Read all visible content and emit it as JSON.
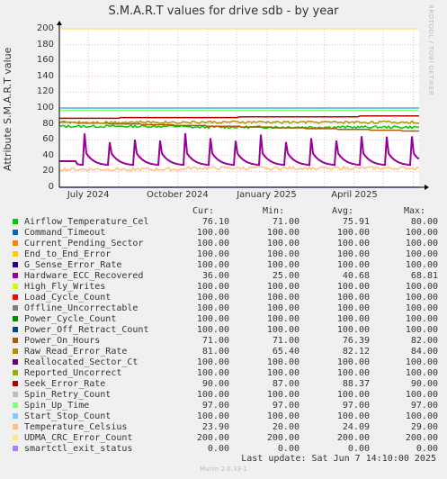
{
  "title": "S.M.A.R.T values for drive sdb - by year",
  "rrdtool_label": "RRDTOOL / TOBI OETIKER",
  "ylabel": "Attribute S.M.A.R.T value",
  "headers": {
    "cur": "Cur:",
    "min": "Min:",
    "avg": "Avg:",
    "max": "Max:"
  },
  "last_update": "Last update:  Sat Jun  7 14:10:00 2025",
  "munin_version": "Munin 2.0.33-1",
  "chart_data": {
    "type": "line",
    "title": "S.M.A.R.T values for drive sdb - by year",
    "ylabel": "Attribute S.M.A.R.T value",
    "ylim": [
      0,
      200
    ],
    "yticks": [
      0,
      20,
      40,
      60,
      80,
      100,
      120,
      140,
      160,
      180,
      200
    ],
    "x_range": [
      "2024-06-01",
      "2025-06-07"
    ],
    "xticks": [
      {
        "label": "July 2024",
        "date": "2024-07-01"
      },
      {
        "label": "October 2024",
        "date": "2024-10-01"
      },
      {
        "label": "January 2025",
        "date": "2025-01-01"
      },
      {
        "label": "April 2025",
        "date": "2025-04-01"
      }
    ],
    "grid": true,
    "series": [
      {
        "name": "Airflow_Temperature_Cel",
        "color": "#00CC00",
        "cur": "76.10",
        "min": "71.00",
        "avg": "75.91",
        "max": "80.00"
      },
      {
        "name": "Command_Timeout",
        "color": "#0066B3",
        "cur": "100.00",
        "min": "100.00",
        "avg": "100.00",
        "max": "100.00"
      },
      {
        "name": "Current_Pending_Sector",
        "color": "#FF8000",
        "cur": "100.00",
        "min": "100.00",
        "avg": "100.00",
        "max": "100.00"
      },
      {
        "name": "End_to_End_Error",
        "color": "#FFCC00",
        "cur": "100.00",
        "min": "100.00",
        "avg": "100.00",
        "max": "100.00"
      },
      {
        "name": "G_Sense_Error_Rate",
        "color": "#330099",
        "cur": "100.00",
        "min": "100.00",
        "avg": "100.00",
        "max": "100.00"
      },
      {
        "name": "Hardware_ECC_Recovered",
        "color": "#990099",
        "cur": "36.00",
        "min": "25.00",
        "avg": "40.68",
        "max": "68.81"
      },
      {
        "name": "High_Fly_Writes",
        "color": "#CCFF00",
        "cur": "100.00",
        "min": "100.00",
        "avg": "100.00",
        "max": "100.00"
      },
      {
        "name": "Load_Cycle_Count",
        "color": "#FF0000",
        "cur": "100.00",
        "min": "100.00",
        "avg": "100.00",
        "max": "100.00"
      },
      {
        "name": "Offline_Uncorrectable",
        "color": "#808080",
        "cur": "100.00",
        "min": "100.00",
        "avg": "100.00",
        "max": "100.00"
      },
      {
        "name": "Power_Cycle_Count",
        "color": "#008F00",
        "cur": "100.00",
        "min": "100.00",
        "avg": "100.00",
        "max": "100.00"
      },
      {
        "name": "Power_Off_Retract_Count",
        "color": "#00487D",
        "cur": "100.00",
        "min": "100.00",
        "avg": "100.00",
        "max": "100.00"
      },
      {
        "name": "Power_On_Hours",
        "color": "#B35A00",
        "cur": "71.00",
        "min": "71.00",
        "avg": "76.39",
        "max": "82.00"
      },
      {
        "name": "Raw_Read_Error_Rate",
        "color": "#B38F00",
        "cur": "81.00",
        "min": "65.40",
        "avg": "82.12",
        "max": "84.00"
      },
      {
        "name": "Reallocated_Sector_Ct",
        "color": "#6B006B",
        "cur": "100.00",
        "min": "100.00",
        "avg": "100.00",
        "max": "100.00"
      },
      {
        "name": "Reported_Uncorrect",
        "color": "#8FB300",
        "cur": "100.00",
        "min": "100.00",
        "avg": "100.00",
        "max": "100.00"
      },
      {
        "name": "Seek_Error_Rate",
        "color": "#B30000",
        "cur": "90.00",
        "min": "87.00",
        "avg": "88.37",
        "max": "90.00"
      },
      {
        "name": "Spin_Retry_Count",
        "color": "#BEBEBE",
        "cur": "100.00",
        "min": "100.00",
        "avg": "100.00",
        "max": "100.00"
      },
      {
        "name": "Spin_Up_Time",
        "color": "#80FF80",
        "cur": "97.00",
        "min": "97.00",
        "avg": "97.00",
        "max": "97.00"
      },
      {
        "name": "Start_Stop_Count",
        "color": "#80C9FF",
        "cur": "100.00",
        "min": "100.00",
        "avg": "100.00",
        "max": "100.00"
      },
      {
        "name": "Temperature_Celsius",
        "color": "#FFC080",
        "cur": "23.90",
        "min": "20.00",
        "avg": "24.09",
        "max": "29.00"
      },
      {
        "name": "UDMA_CRC_Error_Count",
        "color": "#FFE680",
        "cur": "200.00",
        "min": "200.00",
        "avg": "200.00",
        "max": "200.00"
      },
      {
        "name": "smartctl_exit_status",
        "color": "#AA80FF",
        "cur": "0.00",
        "min": "0.00",
        "avg": "0.00",
        "max": "0.00"
      }
    ]
  }
}
